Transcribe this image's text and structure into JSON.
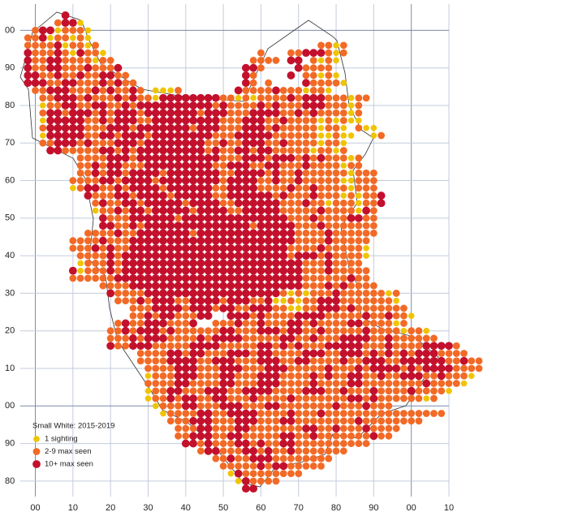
{
  "map": {
    "type": "distribution",
    "title": "Small White:  2015-2019",
    "legend": [
      {
        "label": "1 sighting",
        "color": "#f0c400"
      },
      {
        "label": "2-9 max seen",
        "color": "#f26a26"
      },
      {
        "label": "10+ max seen",
        "color": "#c3102c"
      }
    ],
    "xlim": [
      -4,
      110
    ],
    "ylim": [
      -25,
      107
    ],
    "xticks": [
      {
        "value": 0,
        "label": "00",
        "major": true
      },
      10,
      20,
      30,
      40,
      50,
      60,
      70,
      80,
      90,
      {
        "value": 100,
        "label": "00",
        "major": true
      },
      {
        "value": 110,
        "label": "10"
      }
    ],
    "yticks": [
      {
        "value": 100,
        "label": "00",
        "major": true
      },
      90,
      80,
      70,
      60,
      50,
      40,
      30,
      20,
      10,
      {
        "value": 0,
        "label": "00",
        "major": true
      },
      {
        "value": -10,
        "label": "90"
      },
      {
        "value": -20,
        "label": "80"
      }
    ],
    "cells": {
      "e0": -2,
      "n0": 104,
      "step": 2,
      "rows": [
        [
          [
            5,
            "3"
          ]
        ],
        [
          [
            4,
            "2331"
          ]
        ],
        [
          [
            1,
            "23312221"
          ]
        ],
        [
          [
            0,
            "223122121"
          ]
        ],
        [
          [
            0,
            "2222312212"
          ],
          [
            39,
            "2212"
          ]
        ],
        [
          [
            0,
            "32223213221"
          ],
          [
            31,
            "2"
          ],
          [
            35,
            "22333212"
          ]
        ],
        [
          [
            0,
            "322332222122"
          ],
          [
            30,
            "2222.33.2121"
          ]
        ],
        [
          [
            0,
            "3223322232223"
          ],
          [
            29,
            "332....32222"
          ]
        ],
        [
          [
            0,
            "33223223223322"
          ],
          [
            29,
            "32....3.22121"
          ]
        ],
        [
          [
            0,
            "333223322232322"
          ],
          [
            29,
            "32.2....322221"
          ]
        ],
        [
          [
            1,
            "223332223232232"
          ],
          [
            17,
            "1112"
          ],
          [
            28,
            "3222232221221"
          ]
        ],
        [
          [
            2,
            "22333232223232213333333322121222232333222122"
          ]
        ],
        [
          [
            2,
            "1223322332232333333333323222232322233322212"
          ]
        ],
        [
          [
            2,
            "2332333232333233333332333222333322323222212"
          ]
        ],
        [
          [
            2,
            "1333332232333223333333332223332232222121211"
          ]
        ],
        [
          [
            2,
            "23333322233323333333233322233323222221221.211"
          ]
        ],
        [
          [
            2,
            "133333223323332333333332223333322222211211..12"
          ]
        ],
        [
          [
            2,
            "22333232223332333333332232233322322221221"
          ]
        ],
        [
          [
            3,
            "3322222332323333333332322332332222212212"
          ]
        ],
        [
          [
            7,
            "22223332333333333332223332333232322212"
          ]
        ],
        [
          [
            7,
            "22323322233333333322333223322232222122"
          ]
        ],
        [
          [
            7,
            "2232332333323333333223333232232222221222"
          ]
        ],
        [
          [
            6,
            "22223323333233333333233332232232222211222"
          ]
        ],
        [
          [
            6,
            "12332232333323333332233332222322322221222"
          ]
        ],
        [
          [
            8,
            "3222332333323333322333333232223222121223"
          ]
        ],
        [
          [
            9,
            "232233233333233332233333322232212221223"
          ]
        ],
        [
          [
            9,
            "12232332333332333322333332222232222132"
          ]
        ],
        [
          [
            10,
            "3222333333233333333333333222322223322"
          ]
        ],
        [
          [
            10,
            "3322323333333333333323333322232222222"
          ]
        ],
        [
          [
            8,
            "222232233333332333333333333322223222222"
          ]
        ],
        [
          [
            6,
            "2222322233333333333333333333332222322222"
          ]
        ],
        [
          [
            6,
            "2223232233333333333333333333322223222221"
          ]
        ],
        [
          [
            7,
            "222232333333333333333333333323332322221"
          ]
        ],
        [
          [
            7,
            "12223233333333333333333333333322232222"
          ]
        ],
        [
          [
            6,
            "3122232333333333333333333333333222322222"
          ]
        ],
        [
          [
            6,
            "2222223333333333333333333333333222222322"
          ]
        ],
        [
          [
            10,
            "2222333333333333333333333332223232222"
          ]
        ],
        [
          [
            11,
            "322223333333333333333332121222322222212"
          ]
        ],
        [
          [
            12,
            "22232333223333233322311212233322222221"
          ]
        ],
        [
          [
            14,
            "2223333233323322333221122333232222222"
          ]
        ],
        [
          [
            14,
            "22323322233..3332322223333222223223221"
          ]
        ],
        [
          [
            12,
            "23223332223..22232232223323222233222212"
          ]
        ],
        [
          [
            11,
            "2232333232222223322233323322322222322221221"
          ]
        ],
        [
          [
            11,
            "22232333222232333322222332232223333223222222"
          ]
        ],
        [
          [
            11,
            "32233322222333322222332323222333332223222233332"
          ]
        ],
        [
          [
            15,
            "22223323322233323322223332233323232323332222"
          ]
        ],
        [
          [
            15,
            "2222333322333222333223322223223332233333322322"
          ]
        ],
        [
          [
            16,
            "222233322233322233322222322232333323233332222"
          ]
        ],
        [
          [
            16,
            "12223332223322233322223232233223223332232221"
          ]
        ],
        [
          [
            16,
            "2222332222332223332222322223322222222322221"
          ]
        ],
        [
          [
            16,
            "12233222333223333222233322322232222322221"
          ]
        ],
        [
          [
            16,
            "122323322332223222232222222332322222212"
          ]
        ],
        [
          [
            17,
            "12223322233322233222222232223222"
          ]
        ],
        [
          [
            18,
            "12222332233332222322232222222222222222"
          ]
        ],
        [
          [
            19,
            "2223332223332223322222222322222222"
          ]
        ],
        [
          [
            20,
            "222332223322222223322322232222"
          ]
        ],
        [
          [
            20,
            "22333223322222332232222222322"
          ]
        ],
        [
          [
            21,
            "3323222332322332222222222"
          ]
        ],
        [
          [
            23,
            "23322233232232222222"
          ]
        ],
        [
          [
            25,
            "2232233322222222"
          ]
        ],
        [
          [
            26,
            "22222323322222"
          ]
        ],
        [
          [
            27,
            "1322222222"
          ]
        ],
        [
          [
            28,
            "132222"
          ]
        ],
        [
          [
            29,
            "33"
          ]
        ]
      ]
    }
  }
}
